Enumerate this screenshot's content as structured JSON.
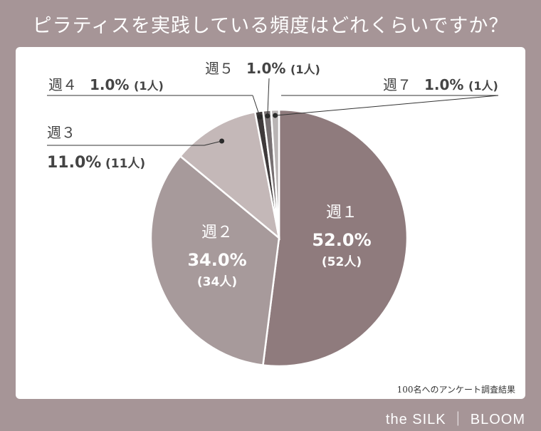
{
  "title": "ピラティスを実践している頻度はどれくらいですか？",
  "footnote": "100名へのアンケート調査結果",
  "brand": "the SILK ｜ BLOOM",
  "chart_data": {
    "type": "pie",
    "slices": [
      {
        "label": "週１",
        "percent": "52.0%",
        "count": "(52人)",
        "value": 52.0,
        "color": "#8f7b7d"
      },
      {
        "label": "週２",
        "percent": "34.0%",
        "count": "(34人)",
        "value": 34.0,
        "color": "#a79a9b"
      },
      {
        "label": "週３",
        "percent": "11.0%",
        "count": "(11人)",
        "value": 11.0,
        "color": "#c4b8b8"
      },
      {
        "label": "週４",
        "percent": "1.0%",
        "count": "(1人)",
        "value": 1.0,
        "color": "#3f3a3b"
      },
      {
        "label": "週５",
        "percent": "1.0%",
        "count": "(1人)",
        "value": 1.0,
        "color": "#777072"
      },
      {
        "label": "週７",
        "percent": "1.0%",
        "count": "(1人)",
        "value": 1.0,
        "color": "#b9b4b4"
      }
    ]
  }
}
